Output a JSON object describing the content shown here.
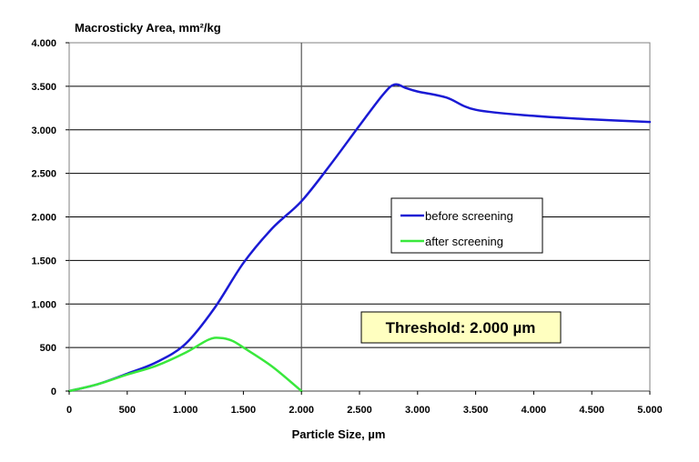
{
  "chart_data": {
    "type": "line",
    "title": "Macrosticky  Area, mm²/kg",
    "xlabel": "Particle  Size, µm",
    "ylabel": "",
    "xlim": [
      0,
      5000
    ],
    "ylim": [
      0,
      4000
    ],
    "x_ticks": [
      0,
      500,
      1000,
      1500,
      2000,
      2500,
      3000,
      3500,
      4000,
      4500,
      5000
    ],
    "x_tick_labels": [
      "0",
      "500",
      "1.000",
      "1.500",
      "2.000",
      "2.500",
      "3.000",
      "3.500",
      "4.000",
      "4.500",
      "5.000"
    ],
    "y_ticks": [
      0,
      500,
      1000,
      1500,
      2000,
      2500,
      3000,
      3500,
      4000
    ],
    "y_tick_labels": [
      "0",
      "500",
      "1.000",
      "1.500",
      "2.000",
      "2.500",
      "3.000",
      "3.500",
      "4.000"
    ],
    "grid": "horizontal",
    "legend_position": "center-right",
    "threshold_x": 2000,
    "annotation": "Threshold: 2.000 µm",
    "series": [
      {
        "name": "before screening",
        "color": "#1a1ad4",
        "x": [
          0,
          250,
          500,
          750,
          1000,
          1250,
          1500,
          1750,
          2000,
          2250,
          2500,
          2700,
          2800,
          2900,
          3000,
          3250,
          3500,
          4000,
          4500,
          5000
        ],
        "values": [
          0,
          80,
          200,
          330,
          540,
          950,
          1470,
          1870,
          2180,
          2600,
          3050,
          3400,
          3520,
          3480,
          3440,
          3370,
          3230,
          3160,
          3120,
          3090
        ]
      },
      {
        "name": "after screening",
        "color": "#39e83c",
        "x": [
          0,
          250,
          500,
          750,
          1000,
          1200,
          1300,
          1400,
          1500,
          1750,
          2000
        ],
        "values": [
          0,
          80,
          190,
          290,
          440,
          590,
          610,
          580,
          500,
          280,
          0
        ]
      }
    ]
  }
}
